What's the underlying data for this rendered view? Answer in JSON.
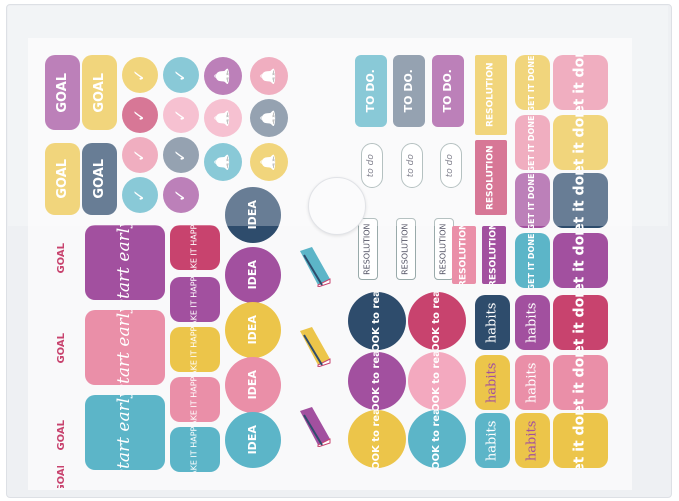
{
  "colors": {
    "purple": "#a2509f",
    "yellow": "#ecc54a",
    "navy": "#2e4c6c",
    "teal": "#5cb5c8",
    "pink": "#ea8fa8",
    "magenta": "#c8436e",
    "gray": "#6c7e94",
    "light_pink": "#f3a9bf"
  },
  "goal_tall": [
    {
      "text": "GOAL",
      "color": "#a2509f"
    },
    {
      "text": "GOAL",
      "color": "#ecc54a"
    },
    {
      "text": "GOAL",
      "color": "#ecc54a"
    },
    {
      "text": "GOAL",
      "color": "#2e4c6c"
    }
  ],
  "goal_small": [
    {
      "text": "GOAL"
    },
    {
      "text": "GOAL"
    },
    {
      "text": "GOAL"
    },
    {
      "text": "GOAL"
    }
  ],
  "check_circles": [
    {
      "text": "✓",
      "color": "#ecc54a"
    },
    {
      "text": "✓",
      "color": "#5cb5c8"
    },
    {
      "text": "✓",
      "color": "#c8436e"
    },
    {
      "text": "✓",
      "color": "#f3a9bf"
    },
    {
      "text": "✓",
      "color": "#ea8fa8"
    },
    {
      "text": "✓",
      "color": "#6c7e94"
    },
    {
      "text": "✓",
      "color": "#5cb5c8"
    },
    {
      "text": "✓",
      "color": "#a2509f"
    }
  ],
  "bell_circles": [
    {
      "color": "#a2509f"
    },
    {
      "color": "#ea8fa8"
    },
    {
      "color": "#f3a9bf"
    },
    {
      "color": "#6c7e94"
    },
    {
      "color": "#5cb5c8"
    },
    {
      "color": "#ecc54a"
    }
  ],
  "start_early": [
    {
      "text": "start early",
      "color": "#a2509f"
    },
    {
      "text": "start early",
      "color": "#ea8fa8"
    },
    {
      "text": "start early",
      "color": "#5cb5c8"
    }
  ],
  "make_it_happen": [
    {
      "text": "MAKE IT HAPPEN",
      "color": "#c8436e"
    },
    {
      "text": "MAKE IT HAPPEN",
      "color": "#a2509f"
    },
    {
      "text": "MAKE IT HAPPEN",
      "color": "#ecc54a"
    },
    {
      "text": "MAKE IT HAPPEN",
      "color": "#ea8fa8"
    },
    {
      "text": "MAKE IT HAPPEN",
      "color": "#5cb5c8"
    }
  ],
  "idea": [
    {
      "text": "IDEA",
      "color": "#2e4c6c"
    },
    {
      "text": "IDEA",
      "color": "#a2509f"
    },
    {
      "text": "IDEA",
      "color": "#ecc54a"
    },
    {
      "text": "IDEA",
      "color": "#ea8fa8"
    },
    {
      "text": "IDEA",
      "color": "#5cb5c8"
    }
  ],
  "todo": [
    {
      "text": "TO DO.",
      "color": "#5cb5c8"
    },
    {
      "text": "TO DO.",
      "color": "#6c7e94"
    },
    {
      "text": "TO DO.",
      "color": "#a2509f"
    }
  ],
  "todo_script": [
    {
      "text": "to do"
    },
    {
      "text": "to do"
    },
    {
      "text": "to do"
    }
  ],
  "resolution_outline": [
    {
      "text": "RESOLUTION"
    },
    {
      "text": "RESOLUTION"
    },
    {
      "text": "RESOLUTION"
    }
  ],
  "resolution": [
    {
      "text": "RESOLUTION",
      "color": "#ecc54a"
    },
    {
      "text": "RESOLUTION",
      "color": "#c8436e"
    },
    {
      "text": "RESOLUTION",
      "color": "#ea8fa8"
    },
    {
      "text": "RESOLUTION",
      "color": "#a2509f"
    }
  ],
  "get_it_done_small": [
    {
      "text": "GET IT DONE!",
      "color": "#ecc54a"
    },
    {
      "text": "GET IT DONE!",
      "color": "#ea8fa8"
    },
    {
      "text": "GET IT DONE!",
      "color": "#a2509f"
    },
    {
      "text": "GET IT DONE!",
      "color": "#5cb5c8"
    }
  ],
  "get_it_done": [
    {
      "text": "Get it done",
      "color": "#ea8fa8"
    },
    {
      "text": "Get it done",
      "color": "#ecc54a"
    },
    {
      "text": "Get it done",
      "color": "#2e4c6c"
    },
    {
      "text": "Get it done",
      "color": "#a2509f"
    },
    {
      "text": "Get it done",
      "color": "#c8436e"
    },
    {
      "text": "Get it done",
      "color": "#ea8fa8"
    },
    {
      "text": "Get it done",
      "color": "#ecc54a"
    }
  ],
  "book_to_read": [
    {
      "text": "BOOK to read",
      "color": "#2e4c6c"
    },
    {
      "text": "BOOK to read",
      "color": "#a2509f"
    },
    {
      "text": "BOOK to read",
      "color": "#ecc54a"
    },
    {
      "text": "BOOK to read",
      "color": "#c8436e"
    },
    {
      "text": "BOOK to read",
      "color": "#f3a9bf"
    },
    {
      "text": "BOOK to read",
      "color": "#5cb5c8"
    }
  ],
  "habits": [
    {
      "text": "habits",
      "color": "#2e4c6c"
    },
    {
      "text": "habits",
      "color": "#ecc54a"
    },
    {
      "text": "habits",
      "color": "#5cb5c8"
    },
    {
      "text": "habits",
      "color": "#a2509f"
    },
    {
      "text": "habits",
      "color": "#ea8fa8"
    },
    {
      "text": "habits",
      "color": "#ecc54a"
    }
  ],
  "book_stacks": [
    {
      "color": "#5cb5c8"
    },
    {
      "color": "#ecc54a"
    },
    {
      "color": "#a2509f"
    }
  ]
}
